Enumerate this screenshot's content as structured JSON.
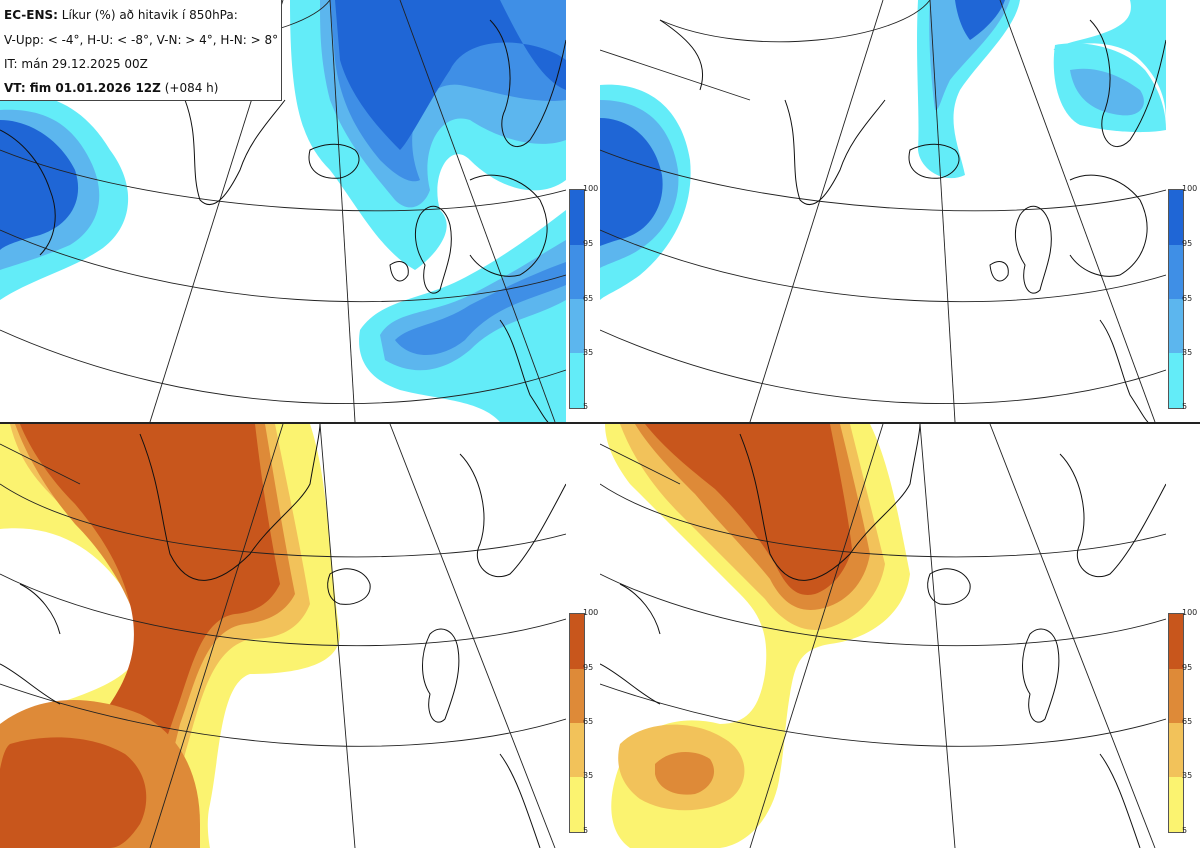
{
  "header": {
    "product": "EC-ENS:",
    "title_rest": "Líkur (%) að hitavik í 850hPa:",
    "thresholds": "V-Upp: < -4°, H-U: < -8°, V-N: > 4°, H-N: > 8°",
    "initial_time": "IT: mán 29.12.2025 00Z",
    "valid_label": "VT: fim 01.01.2026 12Z",
    "lead_time": "(+084 h)"
  },
  "panels": [
    {
      "id": "V-Upp",
      "threshold": "< -4°",
      "palette": "blue"
    },
    {
      "id": "H-U",
      "threshold": "< -8°",
      "palette": "blue"
    },
    {
      "id": "V-N",
      "threshold": "> 4°",
      "palette": "orange"
    },
    {
      "id": "H-N",
      "threshold": "> 8°",
      "palette": "orange"
    }
  ],
  "colorbar": {
    "ticks": [
      "100",
      "95",
      "65",
      "35",
      "5"
    ],
    "blue_colors": [
      "#1f66d6",
      "#3f8fe6",
      "#5cb6ee",
      "#63ecf8"
    ],
    "orange_colors": [
      "#c8561c",
      "#de8a38",
      "#f2c25a",
      "#fbf370"
    ]
  }
}
